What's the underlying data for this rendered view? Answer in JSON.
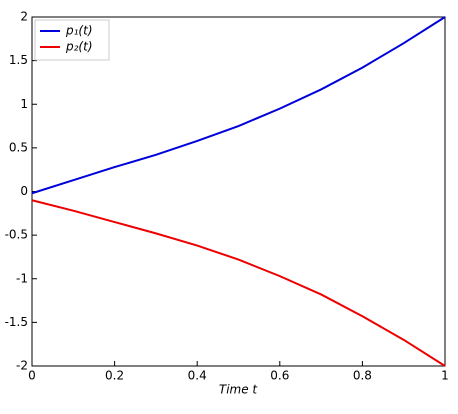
{
  "chart_data": {
    "type": "line",
    "xlabel": "Time t",
    "x": [
      0,
      0.1,
      0.2,
      0.3,
      0.4,
      0.5,
      0.6,
      0.7,
      0.8,
      0.9,
      1
    ],
    "series": [
      {
        "name": "p₁(t)",
        "color": "#0000dd",
        "values": [
          -0.02,
          0.13,
          0.28,
          0.42,
          0.58,
          0.75,
          0.95,
          1.17,
          1.42,
          1.7,
          2
        ]
      },
      {
        "name": "p₂(t)",
        "color": "#ee0000",
        "values": [
          -0.1,
          -0.22,
          -0.35,
          -0.48,
          -0.62,
          -0.78,
          -0.97,
          -1.18,
          -1.43,
          -1.7,
          -2
        ]
      }
    ],
    "xlim": [
      0,
      1
    ],
    "xticks": [
      0,
      0.2,
      0.4,
      0.6,
      0.8,
      1
    ],
    "ylim": [
      -2,
      2
    ],
    "yticks": [
      -2,
      -1.5,
      -1,
      -0.5,
      0,
      0.5,
      1,
      1.5,
      2
    ],
    "legend": "upper left"
  }
}
